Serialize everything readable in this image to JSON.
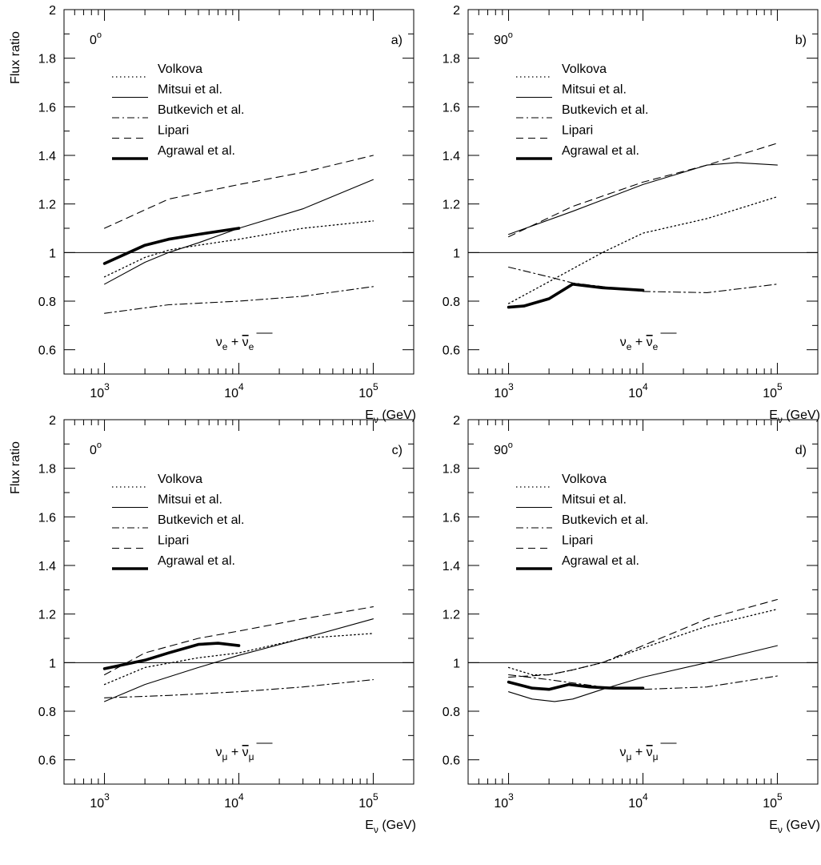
{
  "chart_data": [
    {
      "panel": "a)",
      "type": "line",
      "angle": "0",
      "angle_sup": "o",
      "ylabel": "Flux ratio",
      "xlabel": "E",
      "xlabel_sub": "ν",
      "xlabel_unit": "(GeV)",
      "particle": "ν",
      "particle_sub": "e",
      "particle_plus": "+",
      "particle_bar": "ν",
      "particle_bar_sub": "e",
      "xlog": true,
      "xlim": [
        500,
        200000
      ],
      "ylim": [
        0.5,
        2.0
      ],
      "y_ticks": [
        "0.6",
        "0.8",
        "1",
        "1.2",
        "1.4",
        "1.6",
        "1.8",
        "2"
      ],
      "x_tick_labels": [
        {
          "base": "10",
          "exp": "3"
        },
        {
          "base": "10",
          "exp": "4"
        },
        {
          "base": "10",
          "exp": "5"
        }
      ],
      "reference_line": 1,
      "series": [
        {
          "name": "Volkova",
          "style": "dotted",
          "x": [
            1000,
            2000,
            3000,
            5000,
            10000,
            30000,
            100000
          ],
          "y": [
            0.9,
            0.98,
            1.01,
            1.03,
            1.055,
            1.1,
            1.13
          ]
        },
        {
          "name": "Mitsui et al.",
          "style": "solid",
          "x": [
            1000,
            2000,
            3000,
            5000,
            10000,
            30000,
            100000
          ],
          "y": [
            0.87,
            0.96,
            1.0,
            1.04,
            1.1,
            1.18,
            1.3
          ]
        },
        {
          "name": "Butkevich et al.",
          "style": "dashdot",
          "x": [
            1000,
            3000,
            10000,
            30000,
            100000
          ],
          "y": [
            0.75,
            0.785,
            0.8,
            0.82,
            0.86
          ]
        },
        {
          "name": "Lipari",
          "style": "dashed",
          "x": [
            1000,
            3000,
            10000,
            30000,
            100000
          ],
          "y": [
            1.1,
            1.22,
            1.28,
            1.33,
            1.4
          ]
        },
        {
          "name": "Agrawal et al.",
          "style": "thick",
          "x": [
            1000,
            2000,
            3000,
            5000,
            10000
          ],
          "y": [
            0.955,
            1.03,
            1.055,
            1.075,
            1.1
          ]
        }
      ]
    },
    {
      "panel": "b)",
      "type": "line",
      "angle": "90",
      "angle_sup": "o",
      "ylabel": "",
      "xlabel": "E",
      "xlabel_sub": "ν",
      "xlabel_unit": "(GeV)",
      "particle": "ν",
      "particle_sub": "e",
      "particle_plus": "+",
      "particle_bar": "ν",
      "particle_bar_sub": "e",
      "xlog": true,
      "xlim": [
        500,
        200000
      ],
      "ylim": [
        0.5,
        2.0
      ],
      "y_ticks": [
        "0.6",
        "0.8",
        "1",
        "1.2",
        "1.4",
        "1.6",
        "1.8",
        "2"
      ],
      "x_tick_labels": [
        {
          "base": "10",
          "exp": "3"
        },
        {
          "base": "10",
          "exp": "4"
        },
        {
          "base": "10",
          "exp": "5"
        }
      ],
      "reference_line": 1,
      "series": [
        {
          "name": "Volkova",
          "style": "dotted",
          "x": [
            1000,
            2000,
            5000,
            10000,
            30000,
            100000
          ],
          "y": [
            0.79,
            0.88,
            1.0,
            1.08,
            1.14,
            1.23
          ]
        },
        {
          "name": "Mitsui et al.",
          "style": "solid",
          "x": [
            1000,
            3000,
            10000,
            30000,
            50000,
            100000
          ],
          "y": [
            1.075,
            1.17,
            1.28,
            1.36,
            1.37,
            1.36
          ]
        },
        {
          "name": "Butkevich et al.",
          "style": "dashdot",
          "x": [
            1000,
            2000,
            3000,
            5000,
            10000,
            30000,
            100000
          ],
          "y": [
            0.94,
            0.9,
            0.875,
            0.86,
            0.84,
            0.835,
            0.87
          ]
        },
        {
          "name": "Lipari",
          "style": "dashed",
          "x": [
            1000,
            3000,
            10000,
            30000,
            100000
          ],
          "y": [
            1.065,
            1.19,
            1.29,
            1.36,
            1.45
          ]
        },
        {
          "name": "Agrawal et al.",
          "style": "thick",
          "x": [
            1000,
            1300,
            2000,
            3000,
            5000,
            10000
          ],
          "y": [
            0.775,
            0.78,
            0.81,
            0.87,
            0.855,
            0.845
          ]
        }
      ]
    },
    {
      "panel": "c)",
      "type": "line",
      "angle": "0",
      "angle_sup": "o",
      "ylabel": "Flux ratio",
      "xlabel": "E",
      "xlabel_sub": "ν",
      "xlabel_unit": "(GeV)",
      "particle": "ν",
      "particle_sub": "μ",
      "particle_plus": "+",
      "particle_bar": "ν",
      "particle_bar_sub": "μ",
      "xlog": true,
      "xlim": [
        500,
        200000
      ],
      "ylim": [
        0.5,
        2.0
      ],
      "y_ticks": [
        "0.6",
        "0.8",
        "1",
        "1.2",
        "1.4",
        "1.6",
        "1.8",
        "2"
      ],
      "x_tick_labels": [
        {
          "base": "10",
          "exp": "3"
        },
        {
          "base": "10",
          "exp": "4"
        },
        {
          "base": "10",
          "exp": "5"
        }
      ],
      "reference_line": 1,
      "series": [
        {
          "name": "Volkova",
          "style": "dotted",
          "x": [
            1000,
            2000,
            5000,
            10000,
            30000,
            100000
          ],
          "y": [
            0.91,
            0.98,
            1.02,
            1.04,
            1.1,
            1.12
          ]
        },
        {
          "name": "Mitsui et al.",
          "style": "solid",
          "x": [
            1000,
            2000,
            5000,
            10000,
            30000,
            100000
          ],
          "y": [
            0.84,
            0.91,
            0.98,
            1.03,
            1.1,
            1.18
          ]
        },
        {
          "name": "Butkevich et al.",
          "style": "dashdot",
          "x": [
            1000,
            3000,
            10000,
            30000,
            100000
          ],
          "y": [
            0.855,
            0.865,
            0.88,
            0.9,
            0.93
          ]
        },
        {
          "name": "Lipari",
          "style": "dashed",
          "x": [
            1000,
            2000,
            5000,
            10000,
            30000,
            100000
          ],
          "y": [
            0.95,
            1.04,
            1.1,
            1.13,
            1.18,
            1.23
          ]
        },
        {
          "name": "Agrawal et al.",
          "style": "thick",
          "x": [
            1000,
            2000,
            3000,
            5000,
            7000,
            10000
          ],
          "y": [
            0.975,
            1.01,
            1.04,
            1.075,
            1.08,
            1.07
          ]
        }
      ]
    },
    {
      "panel": "d)",
      "type": "line",
      "angle": "90",
      "angle_sup": "o",
      "ylabel": "",
      "xlabel": "E",
      "xlabel_sub": "ν",
      "xlabel_unit": "(GeV)",
      "particle": "ν",
      "particle_sub": "μ",
      "particle_plus": "+",
      "particle_bar": "ν",
      "particle_bar_sub": "μ",
      "xlog": true,
      "xlim": [
        500,
        200000
      ],
      "ylim": [
        0.5,
        2.0
      ],
      "y_ticks": [
        "0.6",
        "0.8",
        "1",
        "1.2",
        "1.4",
        "1.6",
        "1.8",
        "2"
      ],
      "x_tick_labels": [
        {
          "base": "10",
          "exp": "3"
        },
        {
          "base": "10",
          "exp": "4"
        },
        {
          "base": "10",
          "exp": "5"
        }
      ],
      "reference_line": 1,
      "series": [
        {
          "name": "Volkova",
          "style": "dotted",
          "x": [
            1000,
            1500,
            2000,
            3000,
            5000,
            10000,
            30000,
            100000
          ],
          "y": [
            0.98,
            0.95,
            0.95,
            0.97,
            1.0,
            1.06,
            1.15,
            1.22
          ]
        },
        {
          "name": "Mitsui et al.",
          "style": "solid",
          "x": [
            1000,
            1500,
            2200,
            3000,
            5000,
            10000,
            30000,
            100000
          ],
          "y": [
            0.88,
            0.85,
            0.84,
            0.85,
            0.89,
            0.94,
            1.0,
            1.07
          ]
        },
        {
          "name": "Butkevich et al.",
          "style": "dashdot",
          "x": [
            1000,
            2000,
            5000,
            10000,
            30000,
            100000
          ],
          "y": [
            0.95,
            0.93,
            0.9,
            0.89,
            0.9,
            0.945
          ]
        },
        {
          "name": "Lipari",
          "style": "dashed",
          "x": [
            1000,
            2000,
            3000,
            5000,
            10000,
            30000,
            100000
          ],
          "y": [
            0.94,
            0.95,
            0.97,
            1.0,
            1.07,
            1.18,
            1.26
          ]
        },
        {
          "name": "Agrawal et al.",
          "style": "thick",
          "x": [
            1000,
            1500,
            2000,
            2800,
            4000,
            6000,
            10000
          ],
          "y": [
            0.92,
            0.895,
            0.89,
            0.91,
            0.9,
            0.895,
            0.895
          ]
        }
      ]
    }
  ]
}
